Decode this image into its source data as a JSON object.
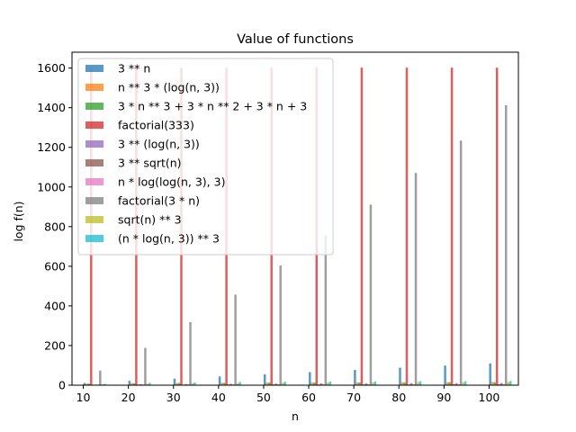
{
  "chart_data": {
    "type": "bar",
    "title": "Value of functions",
    "xlabel": "n",
    "ylabel": "log f(n)",
    "categories": [
      10,
      20,
      30,
      40,
      50,
      60,
      70,
      80,
      90,
      100
    ],
    "x_ticks": [
      10,
      20,
      30,
      40,
      50,
      60,
      70,
      80,
      90,
      100
    ],
    "y_ticks": [
      0,
      200,
      400,
      600,
      800,
      1000,
      1200,
      1400,
      1600
    ],
    "ylim": [
      0,
      1680
    ],
    "xlim": [
      7.5,
      106.5
    ],
    "grid": false,
    "legend_position": "top-left",
    "series": [
      {
        "name": "3 ** n",
        "color": "#1f77b4",
        "values": [
          11,
          22,
          33,
          44,
          55,
          66,
          77,
          88,
          99,
          110
        ]
      },
      {
        "name": "n ** 3 * (log(n, 3))",
        "color": "#ff7f0e",
        "values": [
          8,
          10,
          11,
          12,
          13,
          14,
          14,
          15,
          15,
          16
        ]
      },
      {
        "name": "3 * n ** 3 + 3 * n ** 2 + 3 * n + 3",
        "color": "#2ca02c",
        "values": [
          8,
          10,
          11,
          12,
          13,
          13,
          14,
          14,
          15,
          15
        ]
      },
      {
        "name": "factorial(333)",
        "color": "#d62728",
        "values": [
          1602,
          1602,
          1602,
          1602,
          1602,
          1602,
          1602,
          1602,
          1602,
          1602
        ]
      },
      {
        "name": "3 ** (log(n, 3))",
        "color": "#9467bd",
        "values": [
          2,
          3,
          3,
          4,
          4,
          4,
          4,
          4,
          5,
          5
        ]
      },
      {
        "name": "3 ** sqrt(n)",
        "color": "#8c564b",
        "values": [
          3,
          5,
          6,
          7,
          8,
          9,
          9,
          10,
          10,
          11
        ]
      },
      {
        "name": "n * log(log(n, 3), 3)",
        "color": "#e377c2",
        "values": [
          3,
          4,
          4,
          4,
          5,
          5,
          5,
          5,
          5,
          5
        ]
      },
      {
        "name": "factorial(3 * n)",
        "color": "#7f7f7f",
        "values": [
          74,
          188,
          318,
          457,
          604,
          755,
          911,
          1071,
          1234,
          1412
        ]
      },
      {
        "name": "sqrt(n) ** 3",
        "color": "#bcbd22",
        "values": [
          4,
          7,
          9,
          10,
          12,
          13,
          14,
          15,
          15,
          16
        ]
      },
      {
        "name": "(n * log(n, 3)) ** 3",
        "color": "#17becf",
        "values": [
          7,
          12,
          14,
          16,
          17,
          18,
          19,
          20,
          20,
          21
        ]
      }
    ]
  }
}
